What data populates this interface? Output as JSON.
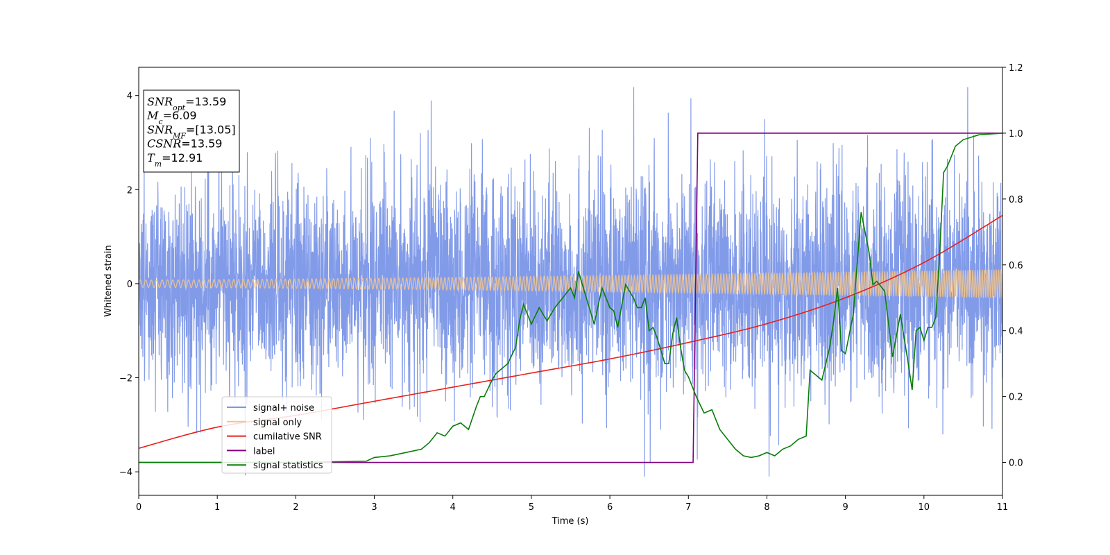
{
  "chart_data": {
    "type": "line",
    "xlabel": "Time (s)",
    "ylabel": "Whitened strain",
    "xlim": [
      0,
      11
    ],
    "ylim_left": [
      -4.5,
      4.6
    ],
    "ylim_right": [
      -0.1,
      1.2
    ],
    "x_ticks": [
      0,
      1,
      2,
      3,
      4,
      5,
      6,
      7,
      8,
      9,
      10,
      11
    ],
    "y_left_ticks": [
      -4,
      -2,
      0,
      2,
      4
    ],
    "y_right_ticks": [
      0.0,
      0.2,
      0.4,
      0.6,
      0.8,
      1.0,
      1.2
    ],
    "legend_position": "lower-left",
    "grid": false,
    "stats_box": {
      "position": "top-left",
      "lines": [
        {
          "var": "SNR",
          "sub": "opt",
          "value": "=13.59"
        },
        {
          "var": "M",
          "sub": "c",
          "value": "=6.09"
        },
        {
          "var": "SNR",
          "sub": "MF",
          "value": "=[13.05]"
        },
        {
          "var": "CSNR",
          "sub": "",
          "value": "=13.59"
        },
        {
          "var": "T",
          "sub": "m",
          "value": "=12.91"
        }
      ]
    },
    "series": [
      {
        "name": "signal+ noise",
        "color": "#7b96e8",
        "axis": "left",
        "style": "noise-band",
        "description_values": {
          "mean": 0,
          "typical_amplitude": 1.1,
          "max": 4.18,
          "min": -4.1
        }
      },
      {
        "name": "signal only",
        "color": "#f5c58a",
        "axis": "left",
        "style": "chirp",
        "amplitude_start": 0.08,
        "amplitude_end": 0.3
      },
      {
        "name": "cumilative SNR",
        "color": "#e8201a",
        "axis": "left",
        "x": [
          0,
          1,
          2,
          3,
          4,
          5,
          6,
          7,
          8,
          9,
          10,
          11
        ],
        "y": [
          -3.5,
          -3.05,
          -2.8,
          -2.5,
          -2.2,
          -1.9,
          -1.6,
          -1.25,
          -0.85,
          -0.3,
          0.45,
          1.45
        ]
      },
      {
        "name": "label",
        "color": "#800080",
        "axis": "right",
        "x": [
          0,
          7.06,
          7.12,
          11
        ],
        "y": [
          0.0,
          0.0,
          1.0,
          1.0
        ]
      },
      {
        "name": "signal statistics",
        "color": "#0a7d0a",
        "axis": "right",
        "x": [
          0,
          1,
          2,
          2.5,
          2.9,
          3.0,
          3.2,
          3.4,
          3.6,
          3.7,
          3.8,
          3.9,
          4.0,
          4.1,
          4.2,
          4.3,
          4.35,
          4.4,
          4.5,
          4.55,
          4.6,
          4.7,
          4.8,
          4.85,
          4.9,
          5.0,
          5.1,
          5.2,
          5.3,
          5.4,
          5.5,
          5.55,
          5.6,
          5.7,
          5.8,
          5.9,
          6.0,
          6.05,
          6.1,
          6.2,
          6.3,
          6.35,
          6.4,
          6.45,
          6.5,
          6.55,
          6.6,
          6.7,
          6.75,
          6.8,
          6.85,
          6.9,
          6.95,
          7.0,
          7.1,
          7.2,
          7.3,
          7.4,
          7.5,
          7.6,
          7.7,
          7.8,
          7.9,
          8.0,
          8.1,
          8.2,
          8.3,
          8.4,
          8.5,
          8.55,
          8.6,
          8.7,
          8.8,
          8.85,
          8.9,
          8.95,
          9.0,
          9.1,
          9.2,
          9.25,
          9.3,
          9.35,
          9.4,
          9.5,
          9.6,
          9.7,
          9.8,
          9.85,
          9.9,
          9.95,
          10.0,
          10.05,
          10.1,
          10.15,
          10.2,
          10.25,
          10.3,
          10.4,
          10.5,
          10.7,
          11
        ],
        "y": [
          0.0,
          0.0,
          0.0,
          0.002,
          0.004,
          0.015,
          0.02,
          0.03,
          0.04,
          0.06,
          0.09,
          0.08,
          0.11,
          0.12,
          0.1,
          0.17,
          0.2,
          0.2,
          0.25,
          0.27,
          0.28,
          0.3,
          0.35,
          0.43,
          0.48,
          0.42,
          0.47,
          0.43,
          0.47,
          0.5,
          0.53,
          0.5,
          0.58,
          0.5,
          0.42,
          0.53,
          0.47,
          0.46,
          0.41,
          0.54,
          0.5,
          0.47,
          0.47,
          0.5,
          0.4,
          0.41,
          0.38,
          0.3,
          0.3,
          0.39,
          0.44,
          0.35,
          0.28,
          0.26,
          0.2,
          0.15,
          0.16,
          0.1,
          0.07,
          0.04,
          0.02,
          0.015,
          0.02,
          0.03,
          0.02,
          0.04,
          0.05,
          0.07,
          0.08,
          0.28,
          0.27,
          0.25,
          0.35,
          0.43,
          0.53,
          0.34,
          0.33,
          0.45,
          0.76,
          0.7,
          0.64,
          0.54,
          0.55,
          0.52,
          0.32,
          0.45,
          0.3,
          0.22,
          0.4,
          0.41,
          0.37,
          0.41,
          0.41,
          0.44,
          0.63,
          0.88,
          0.9,
          0.96,
          0.98,
          0.995,
          1.0
        ]
      }
    ]
  }
}
